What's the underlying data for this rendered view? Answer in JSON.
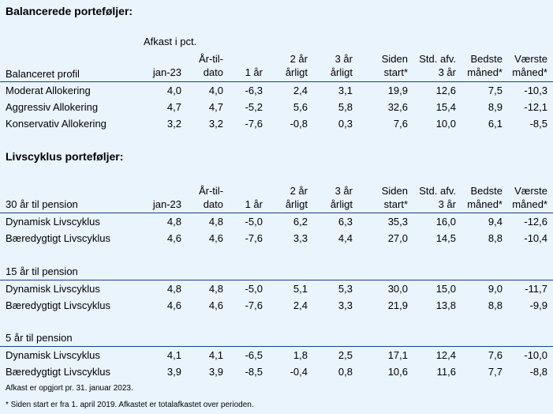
{
  "section1": {
    "title": "Balancerede porteføljer:",
    "subheading": "Afkast i pct.",
    "row_header": "Balanceret profil",
    "rows": [
      {
        "name": "Moderat Allokering",
        "values": [
          "4,0",
          "4,0",
          "-6,3",
          "2,4",
          "3,1",
          "19,9",
          "12,6",
          "7,5",
          "-10,3"
        ]
      },
      {
        "name": "Aggressiv Allokering",
        "values": [
          "4,7",
          "4,7",
          "-5,2",
          "5,6",
          "5,8",
          "32,6",
          "15,4",
          "8,9",
          "-12,1"
        ]
      },
      {
        "name": "Konservativ Allokering",
        "values": [
          "3,2",
          "3,2",
          "-7,6",
          "-0,8",
          "0,3",
          "7,6",
          "10,0",
          "6,1",
          "-8,5"
        ]
      }
    ]
  },
  "section2": {
    "title": "Livscyklus porteføljer:",
    "groups": [
      {
        "heading": "30 år til pension",
        "rows": [
          {
            "name": "Dynamisk Livscyklus",
            "values": [
              "4,8",
              "4,8",
              "-5,0",
              "6,2",
              "6,3",
              "35,3",
              "16,0",
              "9,4",
              "-12,6"
            ]
          },
          {
            "name": "Bæredygtigt Livscyklus",
            "values": [
              "4,6",
              "4,6",
              "-7,6",
              "3,3",
              "4,4",
              "27,0",
              "14,5",
              "8,8",
              "-10,4"
            ]
          }
        ]
      },
      {
        "heading": "15 år til pension",
        "rows": [
          {
            "name": "Dynamisk Livscyklus",
            "values": [
              "4,8",
              "4,8",
              "-5,0",
              "5,1",
              "5,3",
              "30,0",
              "15,0",
              "9,0",
              "-11,7"
            ]
          },
          {
            "name": "Bæredygtigt Livscyklus",
            "values": [
              "4,6",
              "4,6",
              "-7,6",
              "2,4",
              "3,3",
              "21,9",
              "13,8",
              "8,8",
              "-9,9"
            ]
          }
        ]
      },
      {
        "heading": "5 år til pension",
        "rows": [
          {
            "name": "Dynamisk Livscyklus",
            "values": [
              "4,1",
              "4,1",
              "-6,5",
              "1,8",
              "2,5",
              "17,1",
              "12,4",
              "7,6",
              "-10,0"
            ]
          },
          {
            "name": "Bæredygtigt Livscyklus",
            "values": [
              "3,9",
              "3,9",
              "-8,5",
              "-0,4",
              "0,8",
              "10,6",
              "11,6",
              "7,7",
              "-8,8"
            ]
          }
        ]
      }
    ]
  },
  "columns": [
    {
      "l1": "",
      "l2": "jan-23"
    },
    {
      "l1": "År-til-",
      "l2": "dato"
    },
    {
      "l1": "",
      "l2": "1 år"
    },
    {
      "l1": "2 år",
      "l2": "årligt"
    },
    {
      "l1": "3 år",
      "l2": "årligt"
    },
    {
      "l1": "Siden",
      "l2": "start*"
    },
    {
      "l1": "Std. afv.",
      "l2": "3 år"
    },
    {
      "l1": "Bedste",
      "l2": "måned*"
    },
    {
      "l1": "Værste",
      "l2": "måned*"
    }
  ],
  "footnotes": [
    "Afkast er opgjort pr. 31. januar 2023.",
    "* Siden start er fra 1. april 2019. Afkastet er totalafkastet over perioden."
  ],
  "colors": {
    "background": "#eaf4fd",
    "rule": "#1f3c88"
  }
}
